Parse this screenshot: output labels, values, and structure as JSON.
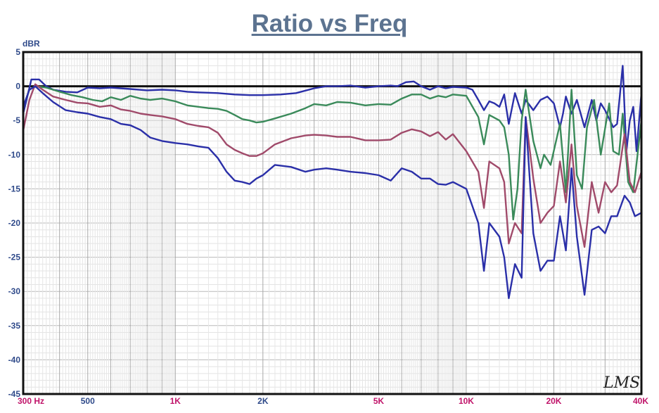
{
  "chart_data": {
    "type": "line",
    "title": "Ratio vs Freq",
    "ylabel": "dBR",
    "xlabel": "",
    "x_scale": "log",
    "xlim": [
      300,
      40000
    ],
    "ylim": [
      -45,
      5
    ],
    "grid": true,
    "legend": "none",
    "watermark": "LMS",
    "x_ticks": [
      {
        "v": 300,
        "label": "300  Hz",
        "color": "#c0146a"
      },
      {
        "v": 500,
        "label": "500",
        "color": "#2f4a8a"
      },
      {
        "v": 1000,
        "label": "1K",
        "color": "#c0146a"
      },
      {
        "v": 2000,
        "label": "2K",
        "color": "#2f4a8a"
      },
      {
        "v": 5000,
        "label": "5K",
        "color": "#c0146a"
      },
      {
        "v": 10000,
        "label": "10K",
        "color": "#c0146a"
      },
      {
        "v": 20000,
        "label": "20K",
        "color": "#c0146a"
      },
      {
        "v": 40000,
        "label": "40K",
        "color": "#c0146a"
      }
    ],
    "y_ticks": [
      {
        "v": 5,
        "label": "5"
      },
      {
        "v": 0,
        "label": "0"
      },
      {
        "v": -5,
        "label": "-5"
      },
      {
        "v": -10,
        "label": "-10"
      },
      {
        "v": -15,
        "label": "-15"
      },
      {
        "v": -20,
        "label": "-20"
      },
      {
        "v": -25,
        "label": "-25"
      },
      {
        "v": -30,
        "label": "-30"
      },
      {
        "v": -35,
        "label": "-35"
      },
      {
        "v": -40,
        "label": "-40"
      },
      {
        "v": -45,
        "label": "-45"
      }
    ],
    "series": [
      {
        "color": "#2a2fa8",
        "points": [
          [
            300,
            -4
          ],
          [
            310,
            -1.5
          ],
          [
            320,
            1
          ],
          [
            340,
            1
          ],
          [
            360,
            0
          ],
          [
            380,
            -0.5
          ],
          [
            420,
            -0.8
          ],
          [
            460,
            -0.9
          ],
          [
            500,
            -0.2
          ],
          [
            550,
            -0.3
          ],
          [
            600,
            -0.2
          ],
          [
            700,
            -0.4
          ],
          [
            800,
            -0.6
          ],
          [
            900,
            -0.5
          ],
          [
            1000,
            -0.6
          ],
          [
            1100,
            -0.8
          ],
          [
            1200,
            -0.9
          ],
          [
            1400,
            -1.0
          ],
          [
            1600,
            -1.2
          ],
          [
            1800,
            -1.3
          ],
          [
            2000,
            -1.3
          ],
          [
            2300,
            -1.2
          ],
          [
            2600,
            -1.0
          ],
          [
            3000,
            -0.3
          ],
          [
            3300,
            0
          ],
          [
            3600,
            0
          ],
          [
            4000,
            0.1
          ],
          [
            4500,
            -0.2
          ],
          [
            5000,
            0
          ],
          [
            5500,
            0.1
          ],
          [
            5800,
            0
          ],
          [
            6200,
            0.6
          ],
          [
            6600,
            0.7
          ],
          [
            7000,
            0
          ],
          [
            7500,
            -0.5
          ],
          [
            8000,
            0
          ],
          [
            8500,
            -0.3
          ],
          [
            9000,
            -0.1
          ],
          [
            10000,
            -0.2
          ],
          [
            10500,
            -0.5
          ],
          [
            11000,
            -2
          ],
          [
            11500,
            -3.5
          ],
          [
            12000,
            -2.2
          ],
          [
            12500,
            -2.5
          ],
          [
            13000,
            -3
          ],
          [
            13500,
            -1.2
          ],
          [
            14000,
            -5.5
          ],
          [
            14700,
            -1
          ],
          [
            15500,
            -4
          ],
          [
            16000,
            -2
          ],
          [
            17000,
            -3.5
          ],
          [
            18000,
            -2
          ],
          [
            19000,
            -1.5
          ],
          [
            20000,
            -2.5
          ],
          [
            21000,
            -6
          ],
          [
            21500,
            -4
          ],
          [
            22000,
            -1.5
          ],
          [
            23000,
            -4
          ],
          [
            24000,
            -2
          ],
          [
            25500,
            -6
          ],
          [
            27000,
            -2
          ],
          [
            28000,
            -5
          ],
          [
            29000,
            -2.5
          ],
          [
            30000,
            -3.5
          ],
          [
            32000,
            -6
          ],
          [
            33000,
            -5.5
          ],
          [
            34500,
            3
          ],
          [
            35500,
            -9.5
          ],
          [
            36500,
            -5
          ],
          [
            37500,
            -3
          ],
          [
            38500,
            -9.5
          ],
          [
            40000,
            -1
          ]
        ]
      },
      {
        "color": "#3a8a5a",
        "points": [
          [
            300,
            -3
          ],
          [
            315,
            -0.5
          ],
          [
            330,
            0
          ],
          [
            360,
            -0.2
          ],
          [
            400,
            -0.8
          ],
          [
            440,
            -1.3
          ],
          [
            480,
            -1.6
          ],
          [
            520,
            -2
          ],
          [
            560,
            -2.2
          ],
          [
            600,
            -1.6
          ],
          [
            650,
            -2
          ],
          [
            700,
            -1.4
          ],
          [
            760,
            -1.8
          ],
          [
            820,
            -2
          ],
          [
            900,
            -1.8
          ],
          [
            1000,
            -2.2
          ],
          [
            1100,
            -2.8
          ],
          [
            1200,
            -3.0
          ],
          [
            1300,
            -3.2
          ],
          [
            1400,
            -3.3
          ],
          [
            1500,
            -3.6
          ],
          [
            1600,
            -4.2
          ],
          [
            1700,
            -4.8
          ],
          [
            1800,
            -5
          ],
          [
            1900,
            -5.3
          ],
          [
            2000,
            -5.2
          ],
          [
            2200,
            -4.7
          ],
          [
            2500,
            -4
          ],
          [
            2800,
            -3.2
          ],
          [
            3000,
            -2.6
          ],
          [
            3300,
            -2.8
          ],
          [
            3600,
            -2.3
          ],
          [
            4000,
            -2.4
          ],
          [
            4500,
            -2.8
          ],
          [
            5000,
            -2.6
          ],
          [
            5500,
            -2.7
          ],
          [
            6000,
            -1.8
          ],
          [
            6500,
            -1.2
          ],
          [
            7000,
            -1.2
          ],
          [
            7500,
            -1.8
          ],
          [
            8000,
            -1.4
          ],
          [
            8500,
            -1.6
          ],
          [
            9000,
            -1.2
          ],
          [
            10000,
            -1.4
          ],
          [
            11000,
            -4.5
          ],
          [
            11500,
            -8.5
          ],
          [
            12000,
            -4.2
          ],
          [
            13000,
            -5
          ],
          [
            13500,
            -6
          ],
          [
            14000,
            -10
          ],
          [
            14500,
            -19.5
          ],
          [
            15000,
            -15
          ],
          [
            15500,
            -5
          ],
          [
            16000,
            -0.5
          ],
          [
            17000,
            -8
          ],
          [
            18000,
            -12
          ],
          [
            18500,
            -10
          ],
          [
            19500,
            -11.5
          ],
          [
            21000,
            -5.5
          ],
          [
            22000,
            -15.5
          ],
          [
            23000,
            -0.5
          ],
          [
            24000,
            -13
          ],
          [
            25000,
            -15
          ],
          [
            26000,
            -6
          ],
          [
            27500,
            -2
          ],
          [
            29000,
            -10
          ],
          [
            31000,
            -2.5
          ],
          [
            32000,
            -9.5
          ],
          [
            33500,
            -10
          ],
          [
            34500,
            -4
          ],
          [
            36000,
            -14
          ],
          [
            37500,
            -15.5
          ],
          [
            40000,
            -5
          ]
        ]
      },
      {
        "color": "#a04a6a",
        "points": [
          [
            300,
            -6.5
          ],
          [
            315,
            -2
          ],
          [
            330,
            0.3
          ],
          [
            350,
            -0.5
          ],
          [
            380,
            -1.5
          ],
          [
            420,
            -2
          ],
          [
            460,
            -2.4
          ],
          [
            500,
            -2.5
          ],
          [
            550,
            -3
          ],
          [
            600,
            -2.8
          ],
          [
            650,
            -3.4
          ],
          [
            700,
            -3.6
          ],
          [
            760,
            -4
          ],
          [
            820,
            -4.2
          ],
          [
            900,
            -4.4
          ],
          [
            1000,
            -4.8
          ],
          [
            1100,
            -5.5
          ],
          [
            1200,
            -5.8
          ],
          [
            1300,
            -6
          ],
          [
            1400,
            -6.8
          ],
          [
            1500,
            -8.5
          ],
          [
            1600,
            -9.3
          ],
          [
            1700,
            -9.8
          ],
          [
            1800,
            -10.2
          ],
          [
            1900,
            -10.2
          ],
          [
            2000,
            -9.8
          ],
          [
            2200,
            -8.5
          ],
          [
            2500,
            -7.6
          ],
          [
            2800,
            -7.2
          ],
          [
            3000,
            -7.1
          ],
          [
            3300,
            -7.2
          ],
          [
            3600,
            -7.4
          ],
          [
            4000,
            -7.4
          ],
          [
            4500,
            -7.9
          ],
          [
            5000,
            -7.9
          ],
          [
            5500,
            -7.8
          ],
          [
            6000,
            -6.8
          ],
          [
            6500,
            -6.3
          ],
          [
            7000,
            -6.6
          ],
          [
            7500,
            -7.3
          ],
          [
            8000,
            -6.7
          ],
          [
            8500,
            -7.8
          ],
          [
            9000,
            -7
          ],
          [
            10000,
            -9.5
          ],
          [
            11000,
            -12.5
          ],
          [
            11500,
            -17.8
          ],
          [
            12000,
            -11
          ],
          [
            13000,
            -12
          ],
          [
            13500,
            -14
          ],
          [
            14000,
            -23
          ],
          [
            14700,
            -20
          ],
          [
            15500,
            -21.5
          ],
          [
            16000,
            -4.5
          ],
          [
            17000,
            -13.5
          ],
          [
            18000,
            -20
          ],
          [
            19000,
            -18.5
          ],
          [
            20000,
            -17.5
          ],
          [
            21000,
            -11
          ],
          [
            22000,
            -17
          ],
          [
            23000,
            -8.5
          ],
          [
            24000,
            -17.5
          ],
          [
            25500,
            -23.5
          ],
          [
            27000,
            -14
          ],
          [
            28500,
            -18.5
          ],
          [
            30000,
            -14
          ],
          [
            31500,
            -15.5
          ],
          [
            33000,
            -14.5
          ],
          [
            35000,
            -7
          ],
          [
            36500,
            -14
          ],
          [
            38000,
            -15.5
          ],
          [
            40000,
            -12.5
          ]
        ]
      },
      {
        "color": "#2a2fa8",
        "points": [
          [
            300,
            -3
          ],
          [
            315,
            -0.5
          ],
          [
            330,
            0
          ],
          [
            350,
            -1
          ],
          [
            380,
            -2.3
          ],
          [
            420,
            -3.5
          ],
          [
            460,
            -3.8
          ],
          [
            500,
            -4
          ],
          [
            550,
            -4.5
          ],
          [
            600,
            -4.8
          ],
          [
            650,
            -5.5
          ],
          [
            700,
            -5.7
          ],
          [
            760,
            -6.4
          ],
          [
            820,
            -7.5
          ],
          [
            900,
            -8
          ],
          [
            1000,
            -8.3
          ],
          [
            1100,
            -8.5
          ],
          [
            1200,
            -8.8
          ],
          [
            1300,
            -9
          ],
          [
            1400,
            -10.5
          ],
          [
            1500,
            -12.5
          ],
          [
            1600,
            -13.8
          ],
          [
            1700,
            -14
          ],
          [
            1800,
            -14.3
          ],
          [
            1900,
            -13.5
          ],
          [
            2000,
            -13
          ],
          [
            2200,
            -11.5
          ],
          [
            2500,
            -11.8
          ],
          [
            2800,
            -12.5
          ],
          [
            3000,
            -12.2
          ],
          [
            3300,
            -12
          ],
          [
            3600,
            -12.2
          ],
          [
            4000,
            -12.5
          ],
          [
            4500,
            -12.7
          ],
          [
            5000,
            -13
          ],
          [
            5500,
            -13.8
          ],
          [
            6000,
            -12
          ],
          [
            6500,
            -12.5
          ],
          [
            7000,
            -13.5
          ],
          [
            7500,
            -13.5
          ],
          [
            8000,
            -14.3
          ],
          [
            8500,
            -14.4
          ],
          [
            9000,
            -14
          ],
          [
            10000,
            -15
          ],
          [
            11000,
            -20
          ],
          [
            11500,
            -27
          ],
          [
            12000,
            -20
          ],
          [
            13000,
            -22
          ],
          [
            13500,
            -25
          ],
          [
            14000,
            -31
          ],
          [
            14700,
            -26
          ],
          [
            15500,
            -28
          ],
          [
            16000,
            -4.5
          ],
          [
            17000,
            -21.5
          ],
          [
            18000,
            -27
          ],
          [
            19000,
            -25.5
          ],
          [
            20000,
            -25.5
          ],
          [
            21000,
            -19
          ],
          [
            22000,
            -24
          ],
          [
            23000,
            -12
          ],
          [
            24000,
            -22
          ],
          [
            25500,
            -30.5
          ],
          [
            27000,
            -21
          ],
          [
            28500,
            -20.5
          ],
          [
            30000,
            -21.5
          ],
          [
            31500,
            -19
          ],
          [
            33000,
            -19
          ],
          [
            35000,
            -16
          ],
          [
            36500,
            -17
          ],
          [
            38000,
            -19
          ],
          [
            40000,
            -18.5
          ]
        ]
      }
    ]
  }
}
